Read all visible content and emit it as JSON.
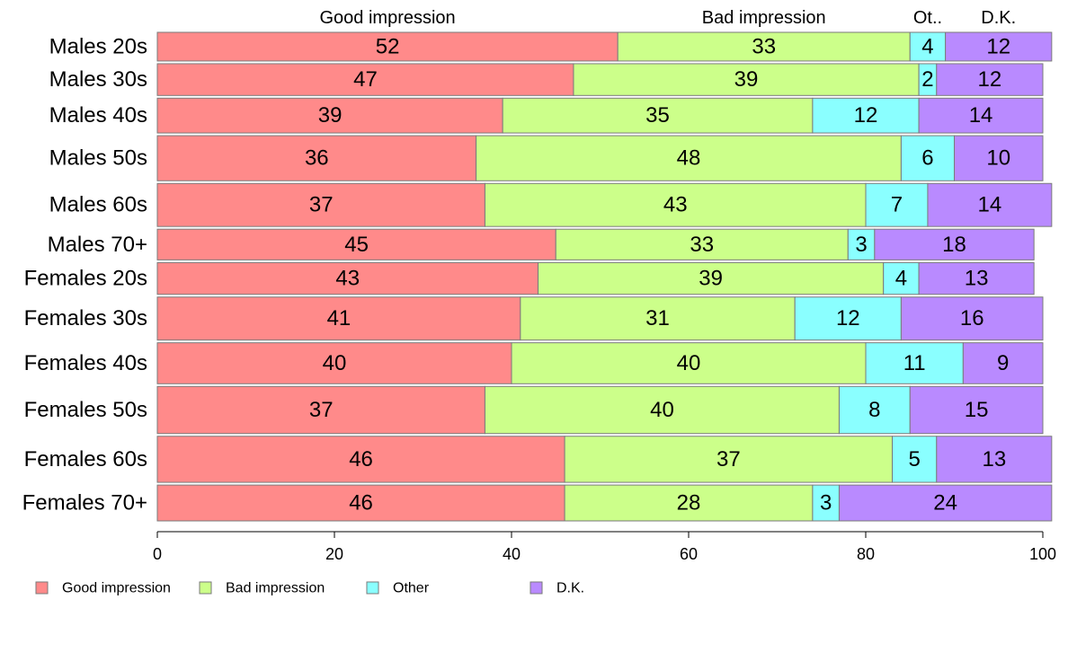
{
  "chart_data": {
    "type": "bar",
    "orientation": "horizontal",
    "stacked": true,
    "categories": [
      "Males 20s",
      "Males 30s",
      "Males 40s",
      "Males 50s",
      "Males 60s",
      "Males 70+",
      "Females 20s",
      "Females 30s",
      "Females 40s",
      "Females 50s",
      "Females 60s",
      "Females 70+"
    ],
    "weights": [
      28,
      31,
      34,
      44,
      42,
      30,
      31,
      42,
      40,
      46,
      45,
      35
    ],
    "series": [
      {
        "name": "Good impression",
        "color": "#ff8a8a",
        "values": [
          52,
          47,
          39,
          36,
          37,
          45,
          43,
          41,
          40,
          37,
          46,
          46
        ]
      },
      {
        "name": "Bad impression",
        "color": "#ccff8a",
        "values": [
          33,
          39,
          35,
          48,
          43,
          33,
          39,
          31,
          40,
          40,
          37,
          28
        ]
      },
      {
        "name": "Other",
        "color": "#8affff",
        "values": [
          4,
          2,
          12,
          6,
          7,
          3,
          4,
          12,
          11,
          8,
          5,
          3
        ]
      },
      {
        "name": "D.K.",
        "color": "#b98aff",
        "values": [
          12,
          12,
          14,
          10,
          14,
          18,
          13,
          16,
          9,
          15,
          13,
          24
        ]
      }
    ],
    "column_headers": [
      "Good impression",
      "Bad impression",
      "Ot..",
      "D.K."
    ],
    "xticks": [
      "0",
      "20",
      "40",
      "60",
      "80",
      "100"
    ],
    "xlim": [
      0,
      100
    ],
    "legend": {
      "placement": "bottom-left",
      "items": [
        "Good impression",
        "Bad impression",
        "Other",
        "D.K."
      ]
    },
    "title": "",
    "xlabel": "",
    "ylabel": ""
  }
}
